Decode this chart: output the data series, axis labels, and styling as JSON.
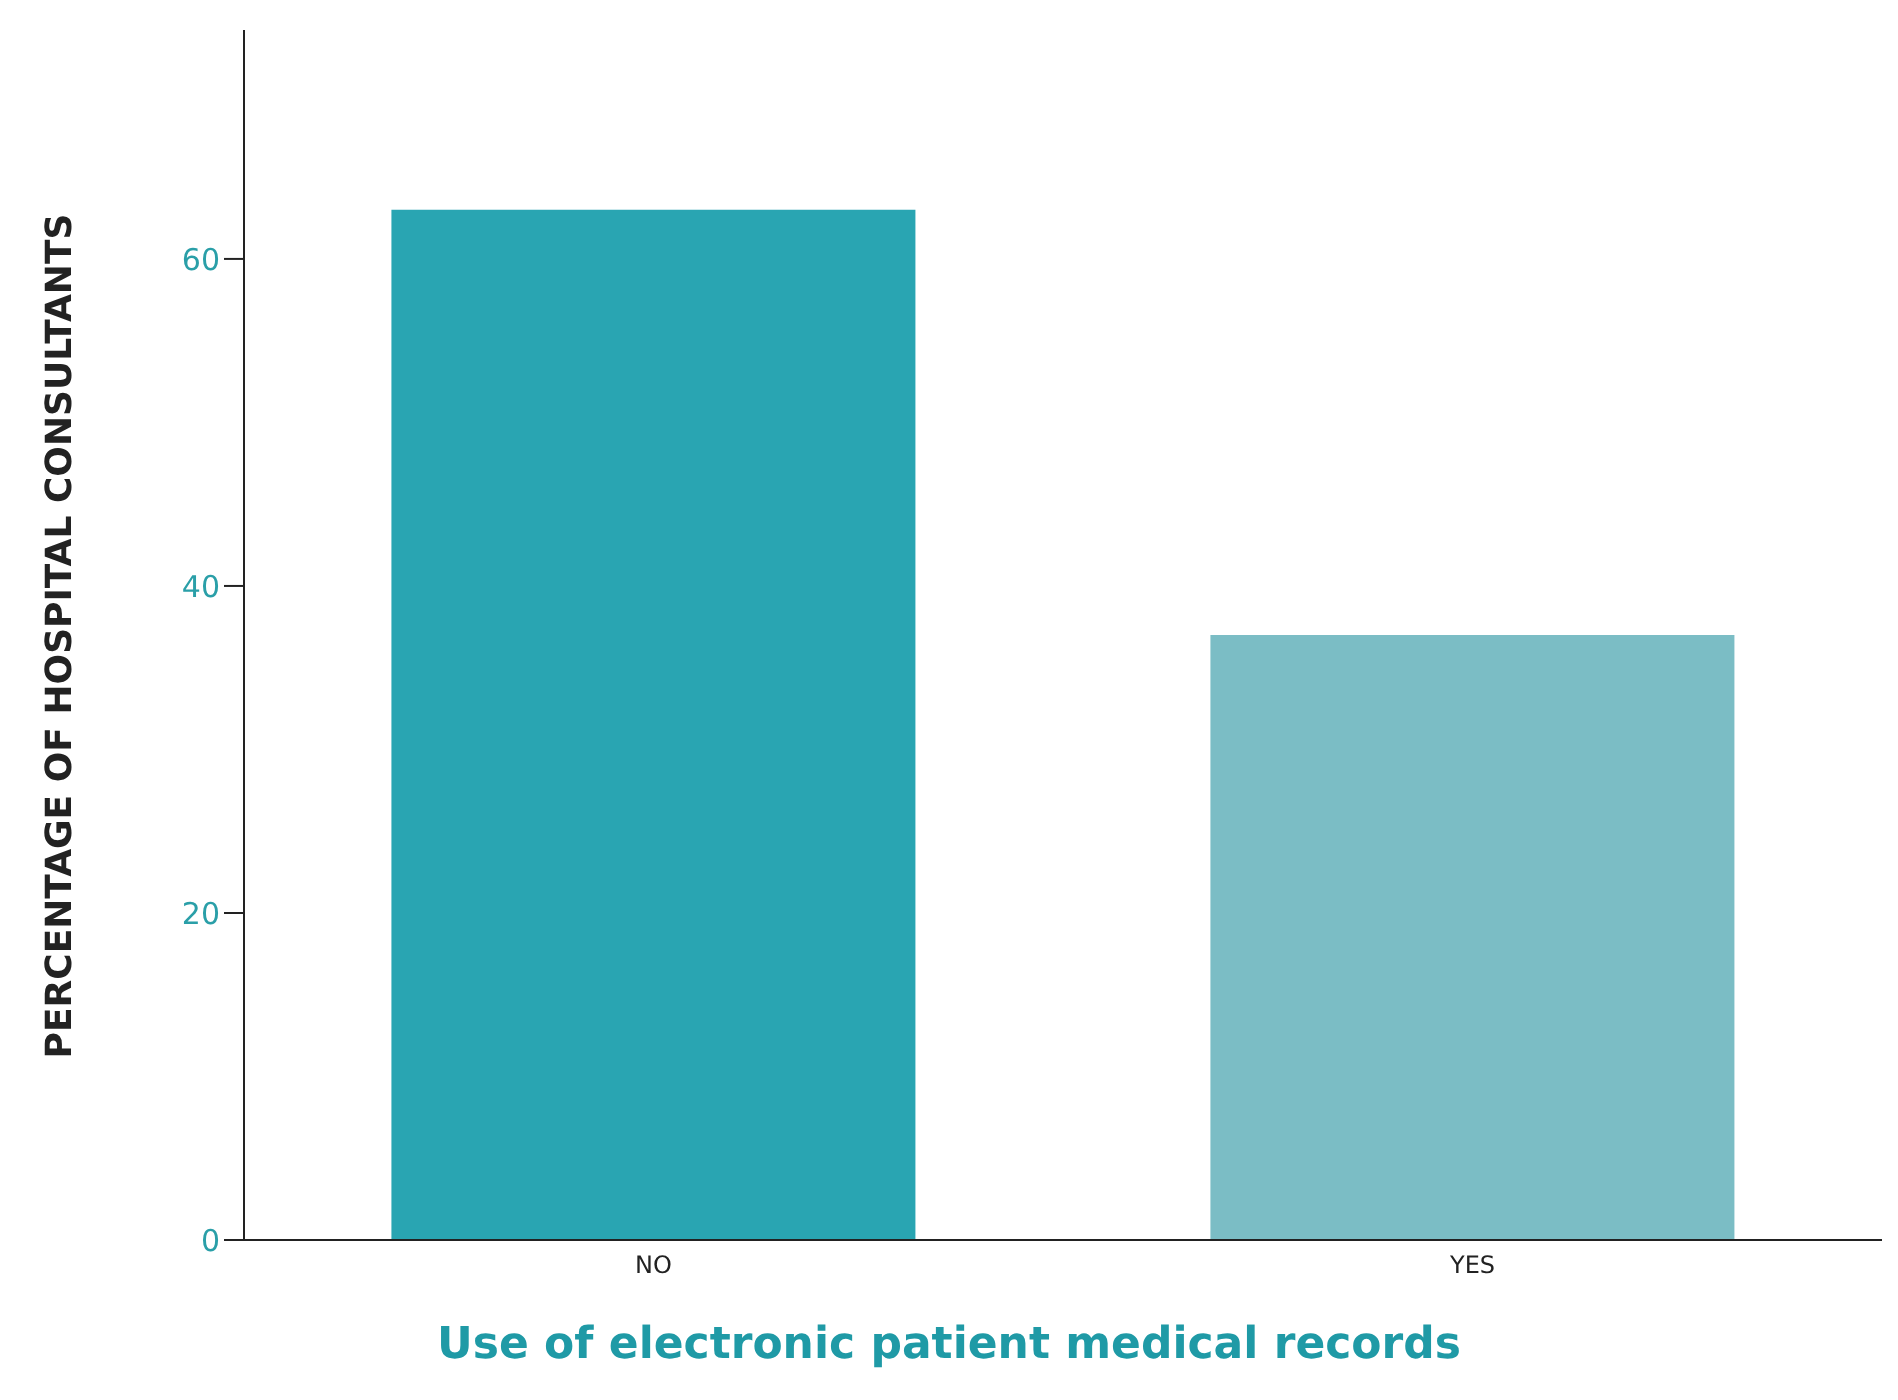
{
  "chart_data": {
    "type": "bar",
    "xlabel": "Use of electronic patient medical records",
    "ylabel": "PERCENTAGE OF HOSPITAL CONSULTANTS",
    "categories": [
      "NO",
      "YES"
    ],
    "values": [
      63,
      37
    ],
    "colors": [
      "#29a5b2",
      "#7bbdc5"
    ],
    "ylim": [
      0,
      74
    ],
    "yticks": [
      0,
      20,
      40,
      60
    ],
    "grid": false,
    "legend": false
  }
}
